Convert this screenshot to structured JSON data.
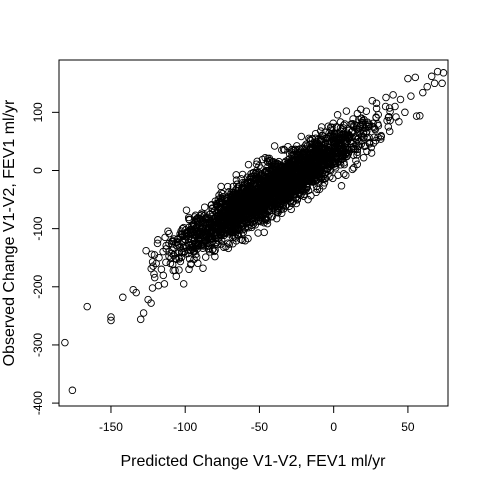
{
  "chart_data": {
    "type": "scatter",
    "title": "",
    "xlabel": "Predicted Change V1-V2, FEV1 ml/yr",
    "ylabel": "Observed Change V1-V2, FEV1 ml/yr",
    "xlim": [
      -185,
      77
    ],
    "ylim": [
      -405,
      190
    ],
    "x_ticks": [
      -150,
      -100,
      -50,
      0,
      50
    ],
    "x_tick_labels": [
      "-150",
      "-100",
      "-50",
      "0",
      "50"
    ],
    "y_ticks": [
      -400,
      -300,
      -200,
      -100,
      0,
      100
    ],
    "y_tick_labels": [
      "-400",
      "-300",
      "-200",
      "-100",
      "0",
      "100"
    ],
    "grid": false,
    "marker": "open-circle",
    "series": [
      {
        "values": [
          [
            -181,
            -296
          ],
          [
            -176,
            -378
          ],
          [
            -166,
            -234
          ],
          [
            -150,
            -252
          ],
          [
            -150,
            -258
          ],
          [
            -142,
            -218
          ],
          [
            -135,
            -205
          ],
          [
            -133,
            -210
          ],
          [
            -130,
            -256
          ],
          [
            -128,
            -245
          ],
          [
            -125,
            -222
          ],
          [
            -123,
            -228
          ],
          [
            -122,
            -202
          ],
          [
            -121,
            -178
          ],
          [
            -118,
            -198
          ],
          [
            -116,
            -170
          ],
          [
            -114,
            -195
          ],
          [
            -113,
            -158
          ],
          [
            -110,
            -160
          ],
          [
            -108,
            -172
          ],
          [
            -106,
            -182
          ],
          [
            -104,
            -152
          ],
          [
            -102,
            -140
          ],
          [
            -101,
            -195
          ],
          [
            -99,
            -132
          ],
          [
            -97,
            -152
          ],
          [
            -96,
            -160
          ],
          [
            -95,
            -126
          ],
          [
            -92,
            -135
          ],
          [
            -91,
            -110
          ],
          [
            -90,
            -118
          ],
          [
            -88,
            -168
          ],
          [
            -86,
            -100
          ],
          [
            -84,
            -130
          ],
          [
            -82,
            -92
          ],
          [
            -80,
            -148
          ],
          [
            -78,
            -100
          ],
          [
            -76,
            -74
          ],
          [
            -74,
            -132
          ],
          [
            -72,
            -82
          ],
          [
            -71,
            -134
          ],
          [
            -69,
            -60
          ],
          [
            -67,
            -114
          ],
          [
            -66,
            -116
          ],
          [
            -64,
            -54
          ],
          [
            -62,
            -110
          ],
          [
            -60,
            -40
          ],
          [
            -58,
            -96
          ],
          [
            -56,
            -42
          ],
          [
            -54,
            -92
          ],
          [
            -52,
            -18
          ],
          [
            -50,
            -62
          ],
          [
            -48,
            -30
          ],
          [
            -46,
            -82
          ],
          [
            -44,
            -14
          ],
          [
            -42,
            -60
          ],
          [
            -40,
            -6
          ],
          [
            -38,
            -62
          ],
          [
            -36,
            -22
          ],
          [
            -34,
            -50
          ],
          [
            -32,
            2
          ],
          [
            -30,
            -46
          ],
          [
            -28,
            14
          ],
          [
            -26,
            -42
          ],
          [
            -24,
            10
          ],
          [
            -22,
            -32
          ],
          [
            -20,
            24
          ],
          [
            -18,
            -22
          ],
          [
            -16,
            20
          ],
          [
            -14,
            -20
          ],
          [
            -12,
            36
          ],
          [
            -10,
            -10
          ],
          [
            -8,
            28
          ],
          [
            -6,
            -6
          ],
          [
            -4,
            46
          ],
          [
            -2,
            0
          ],
          [
            0,
            44
          ],
          [
            2,
            12
          ],
          [
            4,
            62
          ],
          [
            6,
            20
          ],
          [
            8,
            56
          ],
          [
            10,
            30
          ],
          [
            12,
            80
          ],
          [
            14,
            38
          ],
          [
            16,
            98
          ],
          [
            18,
            76
          ],
          [
            20,
            64
          ],
          [
            22,
            102
          ],
          [
            24,
            48
          ],
          [
            26,
            120
          ],
          [
            28,
            70
          ],
          [
            30,
            96
          ],
          [
            32,
            60
          ],
          [
            35,
            110
          ],
          [
            38,
            86
          ],
          [
            40,
            130
          ],
          [
            42,
            92
          ],
          [
            45,
            122
          ],
          [
            48,
            100
          ],
          [
            50,
            158
          ],
          [
            52,
            128
          ],
          [
            55,
            160
          ],
          [
            58,
            94
          ],
          [
            60,
            134
          ],
          [
            63,
            144
          ],
          [
            66,
            162
          ],
          [
            68,
            150
          ],
          [
            70,
            170
          ],
          [
            73,
            150
          ],
          [
            74,
            168
          ]
        ],
        "cloud_trend": {
          "slope": 1.6,
          "intercept": 35,
          "x_range": [
            -120,
            40
          ],
          "points": 2600,
          "spread_sd": 22
        }
      }
    ]
  }
}
